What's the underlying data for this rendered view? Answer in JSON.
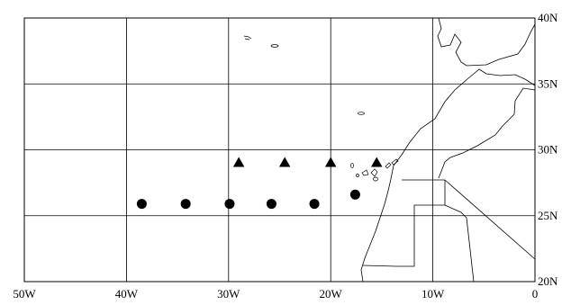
{
  "map": {
    "lon_range": [
      -50,
      0
    ],
    "lat_range": [
      20,
      40
    ],
    "grid_lons": [
      -40,
      -30,
      -20,
      -10
    ],
    "grid_lats": [
      25,
      30,
      35
    ],
    "lon_labels": [
      "50W",
      "40W",
      "30W",
      "20W",
      "10W",
      "0"
    ],
    "lat_labels": [
      "40N",
      "35N",
      "30N",
      "25N",
      "20N"
    ],
    "colors": {
      "frame": "#000000",
      "grid": "#000000",
      "coast": "#000000",
      "marker": "#000000"
    }
  },
  "chart_data": {
    "type": "scatter",
    "series": [
      {
        "marker": "triangle",
        "points": [
          {
            "lon": -29.0,
            "lat": 29.0
          },
          {
            "lon": -24.5,
            "lat": 29.0
          },
          {
            "lon": -20.0,
            "lat": 29.0
          },
          {
            "lon": -15.5,
            "lat": 29.0
          }
        ]
      },
      {
        "marker": "circle",
        "points": [
          {
            "lon": -38.5,
            "lat": 25.9
          },
          {
            "lon": -34.2,
            "lat": 25.9
          },
          {
            "lon": -29.9,
            "lat": 25.9
          },
          {
            "lon": -25.8,
            "lat": 25.9
          },
          {
            "lon": -21.6,
            "lat": 25.9
          },
          {
            "lon": -17.6,
            "lat": 26.6
          }
        ]
      }
    ],
    "x_tick_labels": [
      "50W",
      "40W",
      "30W",
      "20W",
      "10W",
      "0"
    ],
    "y_tick_labels": [
      "40N",
      "35N",
      "30N",
      "25N",
      "20N"
    ]
  }
}
